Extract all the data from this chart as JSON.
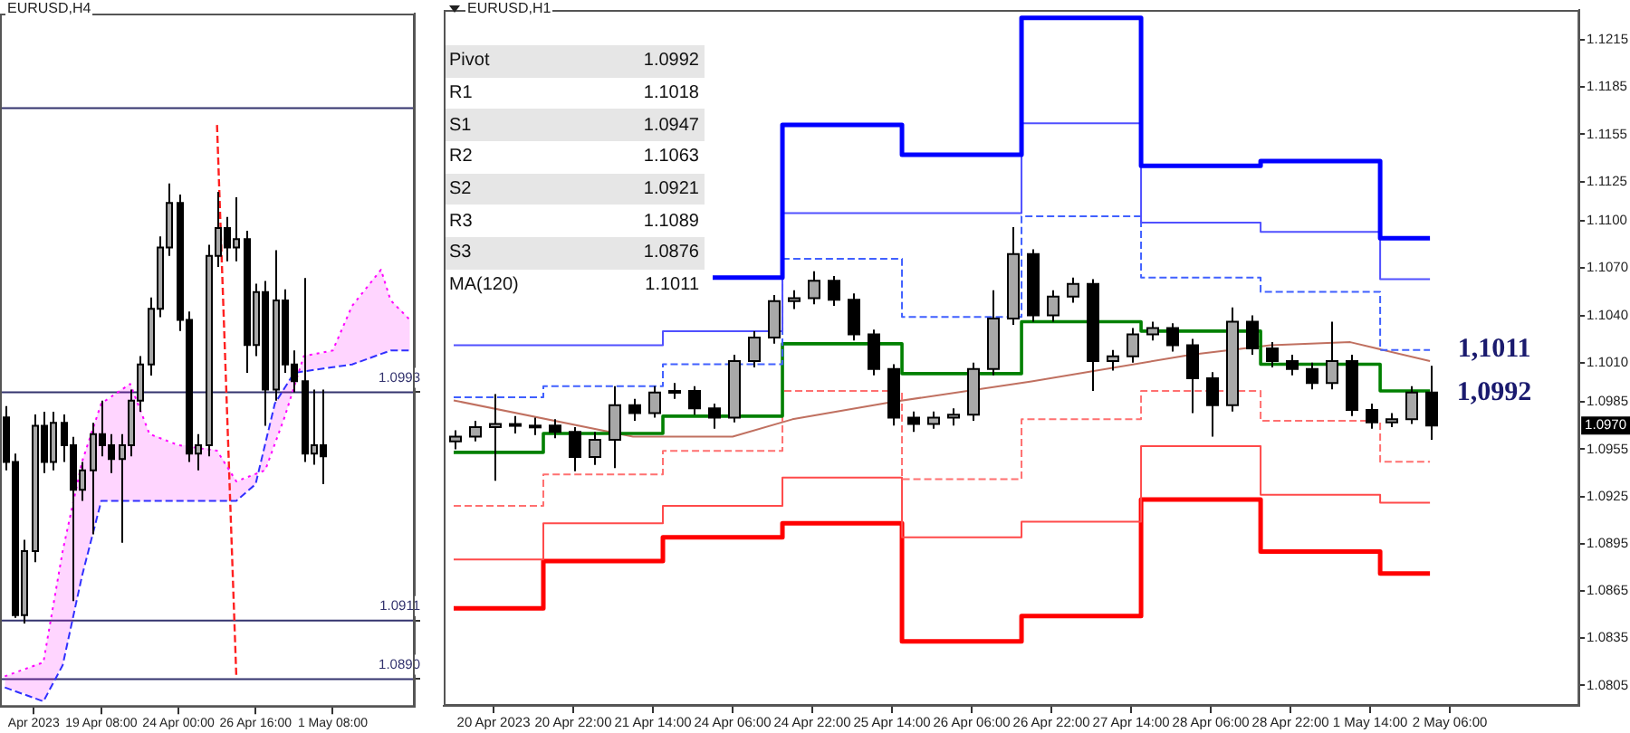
{
  "chart_data": [
    {
      "type": "candlestick",
      "title": "EURUSD,H4",
      "categories": [
        null,
        null,
        null,
        "Apr 2023",
        null,
        null,
        null,
        null,
        null,
        null,
        "19 Apr 08:00",
        null,
        null,
        null,
        null,
        null,
        null,
        null,
        "24 Apr 00:00",
        null,
        null,
        null,
        null,
        null,
        null,
        null,
        "26 Apr 16:00",
        null,
        null,
        null,
        null,
        null,
        null,
        null,
        "1 May 08:00",
        null,
        null,
        null,
        null,
        null,
        null,
        null,
        null
      ],
      "ohlc": [
        [
          1.0984,
          1.0988,
          1.0965,
          1.0968
        ],
        [
          1.0968,
          1.0971,
          1.0912,
          1.0913
        ],
        [
          1.0913,
          1.094,
          1.091,
          1.0936
        ],
        [
          1.0936,
          1.0985,
          1.0932,
          1.0981
        ],
        [
          1.0981,
          1.0986,
          1.0964,
          1.0968
        ],
        [
          1.0968,
          1.0986,
          1.0965,
          1.0982
        ],
        [
          1.0982,
          1.0985,
          1.0968,
          1.0974
        ],
        [
          1.0974,
          1.0977,
          1.0918,
          1.0958
        ],
        [
          1.0958,
          1.0968,
          1.0954,
          1.0965
        ],
        [
          1.0965,
          1.0982,
          1.0942,
          1.0978
        ],
        [
          1.0978,
          1.099,
          1.097,
          1.0974
        ],
        [
          1.0974,
          1.0978,
          1.0964,
          1.0969
        ],
        [
          1.0969,
          1.0978,
          1.0939,
          1.0974
        ],
        [
          1.0974,
          1.0994,
          1.097,
          1.099
        ],
        [
          1.099,
          1.1006,
          1.0986,
          1.1003
        ],
        [
          1.1003,
          1.1027,
          1.0999,
          1.1023
        ],
        [
          1.1023,
          1.1049,
          1.102,
          1.1045
        ],
        [
          1.1045,
          1.1068,
          1.1042,
          1.1061
        ],
        [
          1.1061,
          1.1064,
          1.1015,
          1.1019
        ],
        [
          1.1019,
          1.1022,
          1.0968,
          1.0971
        ],
        [
          1.0971,
          1.0978,
          1.0965,
          1.0974
        ],
        [
          1.0974,
          1.1046,
          1.097,
          1.1042
        ],
        [
          1.1042,
          1.1065,
          1.1038,
          1.1052
        ],
        [
          1.1052,
          1.1056,
          1.104,
          1.1045
        ],
        [
          1.1045,
          1.1063,
          1.104,
          1.1048
        ],
        [
          1.1048,
          1.1051,
          1.1,
          1.101
        ],
        [
          1.101,
          1.1032,
          1.1006,
          1.1029
        ],
        [
          1.1029,
          1.1033,
          1.0981,
          1.0994
        ],
        [
          1.0994,
          1.1044,
          1.099,
          1.1026
        ],
        [
          1.1026,
          1.103,
          1.1,
          1.1003
        ],
        [
          1.1003,
          1.1008,
          1.0993,
          1.0997
        ],
        [
          1.0997,
          1.1034,
          1.0968,
          1.0971
        ],
        [
          1.0971,
          1.0994,
          1.0967,
          1.0974
        ],
        [
          1.0974,
          1.0994,
          1.096,
          1.097
        ],
        null,
        null,
        null,
        null,
        null,
        null,
        null,
        null,
        null
      ],
      "series": [
        {
          "type": "line",
          "color": "#ff00ff",
          "line_style": "dotted",
          "values": [
            1.0891,
            null,
            null,
            null,
            1.0896,
            null,
            1.0936,
            null,
            1.0968,
            null,
            1.0989,
            null,
            null,
            1.0996,
            null,
            1.0978,
            null,
            null,
            1.0974,
            null,
            null,
            null,
            1.0972,
            null,
            1.0961,
            null,
            null,
            1.0965,
            null,
            1.0984,
            null,
            1.1006,
            null,
            null,
            1.1008,
            null,
            1.1024,
            null,
            null,
            1.1037,
            1.1026,
            null,
            1.1019
          ],
          "upper": [
            1.0891,
            1.0892,
            1.0893,
            1.0895,
            1.0896,
            1.0916,
            1.0936,
            1.0952,
            1.0968,
            1.0979,
            1.0989,
            1.0991,
            1.0994,
            1.0996,
            1.0987,
            1.0978,
            1.0977,
            1.0975,
            1.0974,
            1.0974,
            1.0973,
            1.0973,
            1.0972,
            1.0967,
            1.0961,
            1.0962,
            1.0964,
            1.0965,
            1.0975,
            1.0984,
            1.0995,
            1.1006,
            1.1007,
            1.1007,
            1.1008,
            1.1016,
            1.1024,
            1.1028,
            1.1033,
            1.1037,
            1.1026,
            1.1023,
            1.1019
          ],
          "lower": [
            1.0887,
            1.0886,
            1.0885,
            1.0883,
            1.0882,
            1.0889,
            1.0895,
            1.0911,
            1.0927,
            1.0941,
            1.0954,
            1.0954,
            1.0954,
            1.0954,
            1.0954,
            1.0954,
            1.0954,
            1.0954,
            1.0954,
            1.0954,
            1.0954,
            1.0954,
            1.0954,
            1.0954,
            1.0954,
            1.0957,
            1.096,
            1.0975,
            1.0989,
            1.0995,
            1.1,
            1.1001,
            1.1001,
            1.1002,
            1.1002,
            1.1003,
            1.1003,
            1.1004,
            1.1005,
            1.1007,
            1.1008,
            1.1008,
            1.1008
          ]
        },
        {
          "type": "line",
          "color": "#3030ff",
          "line_style": "dashed",
          "values": [
            1.0887,
            null,
            null,
            null,
            1.0882,
            null,
            1.0895,
            null,
            1.0927,
            null,
            1.0954,
            null,
            null,
            null,
            null,
            null,
            null,
            null,
            null,
            null,
            null,
            null,
            null,
            null,
            1.0954,
            null,
            1.096,
            null,
            1.0989,
            null,
            1.1,
            null,
            null,
            null,
            1.1002,
            null,
            1.1003,
            null,
            null,
            null,
            1.1008,
            null,
            1.1008
          ]
        },
        {
          "type": "line",
          "color": "#ff2020",
          "line_style": "dashed",
          "values": [
            null,
            null,
            null,
            null,
            null,
            null,
            null,
            null,
            null,
            null,
            null,
            null,
            null,
            null,
            null,
            null,
            null,
            null,
            null,
            null,
            null,
            null,
            1.1089,
            null,
            1.0891,
            null,
            null,
            null,
            null,
            null,
            null,
            null,
            null,
            null,
            null,
            null,
            null,
            null,
            null,
            null,
            null,
            null,
            null
          ]
        }
      ],
      "ylim": [
        1.088,
        1.1129
      ],
      "yticks": [
        1.0993,
        1.0911,
        {
          "value": 1.089,
          "label": "1.0890"
        }
      ],
      "ref_lines": [
        {
          "axis": "y",
          "value": 1.1095,
          "color": "#33336e"
        },
        {
          "axis": "y",
          "value": 1.0993,
          "color": "#33336e"
        },
        {
          "axis": "y",
          "value": 1.0911,
          "color": "#33336e"
        },
        {
          "axis": "y",
          "value": 1.089,
          "color": "#33336e"
        }
      ]
    },
    {
      "type": "candlestick",
      "title": "EURUSD,H1",
      "categories": [
        null,
        null,
        "20 Apr 2023",
        null,
        null,
        null,
        "20 Apr 22:00",
        null,
        null,
        null,
        "21 Apr 14:00",
        null,
        null,
        null,
        "24 Apr 06:00",
        null,
        null,
        null,
        "24 Apr 22:00",
        null,
        null,
        null,
        "25 Apr 14:00",
        null,
        null,
        null,
        "26 Apr 06:00",
        null,
        null,
        null,
        "26 Apr 22:00",
        null,
        null,
        null,
        "27 Apr 14:00",
        null,
        null,
        null,
        "28 Apr 06:00",
        null,
        null,
        null,
        "28 Apr 22:00",
        null,
        null,
        null,
        "1 May 14:00",
        null,
        null,
        null,
        "2 May 06:00",
        null,
        null,
        null,
        null,
        null,
        null
      ],
      "ohlc": [
        [
          1.096,
          1.0967,
          1.0955,
          1.0963
        ],
        [
          1.0963,
          1.0973,
          1.096,
          1.0969
        ],
        [
          1.0969,
          1.099,
          1.0935,
          1.0971
        ],
        [
          1.0971,
          1.0976,
          1.0965,
          1.097
        ],
        [
          1.097,
          1.0975,
          1.0964,
          1.097
        ],
        [
          1.097,
          1.0974,
          1.0962,
          1.0966
        ],
        [
          1.0966,
          1.0969,
          1.0941,
          1.095
        ],
        [
          1.095,
          1.0966,
          1.0945,
          1.0961
        ],
        [
          1.0961,
          1.0995,
          1.0943,
          1.0983
        ],
        [
          1.0983,
          1.0987,
          1.0973,
          1.0978
        ],
        [
          1.0978,
          1.0995,
          1.0975,
          1.0991
        ],
        [
          1.0991,
          1.0997,
          1.0987,
          1.0992
        ],
        [
          1.0992,
          1.0995,
          1.0977,
          1.0981
        ],
        [
          1.0981,
          1.0984,
          1.0968,
          1.0975
        ],
        [
          1.0975,
          1.1015,
          1.0972,
          1.1011
        ],
        [
          1.1011,
          1.103,
          1.1007,
          1.1026
        ],
        [
          1.1026,
          1.1053,
          1.1022,
          1.1049
        ],
        [
          1.1049,
          1.1056,
          1.1044,
          1.1051
        ],
        [
          1.1051,
          1.1068,
          1.1047,
          1.1062
        ],
        [
          1.1062,
          1.1065,
          1.1046,
          1.105
        ],
        [
          1.105,
          1.1054,
          1.1024,
          1.1028
        ],
        [
          1.1028,
          1.1031,
          1.1002,
          1.1006
        ],
        [
          1.1006,
          1.1009,
          1.097,
          1.0975
        ],
        [
          1.0975,
          1.0979,
          1.0966,
          1.0971
        ],
        [
          1.0971,
          1.0979,
          1.0968,
          1.0975
        ],
        [
          1.0975,
          1.0981,
          1.097,
          1.0977
        ],
        [
          1.0977,
          1.101,
          1.0973,
          1.1006
        ],
        [
          1.1006,
          1.1056,
          1.1002,
          1.1038
        ],
        [
          1.1038,
          1.1096,
          1.1034,
          1.1079
        ],
        [
          1.1079,
          1.1082,
          1.1036,
          1.104
        ],
        [
          1.104,
          1.1056,
          1.1036,
          1.1052
        ],
        [
          1.1052,
          1.1064,
          1.1048,
          1.106
        ],
        [
          1.106,
          1.1063,
          1.0992,
          1.1011
        ],
        [
          1.1011,
          1.1018,
          1.1005,
          1.1014
        ],
        [
          1.1014,
          1.1032,
          1.101,
          1.1028
        ],
        [
          1.1028,
          1.1036,
          1.1024,
          1.1032
        ],
        [
          1.1032,
          1.1035,
          1.1017,
          1.1021
        ],
        [
          1.1021,
          1.1025,
          1.0978,
          1.1
        ],
        [
          1.1,
          1.1004,
          1.0963,
          1.0983
        ],
        [
          1.0983,
          1.1045,
          1.0979,
          1.1036
        ],
        [
          1.1036,
          1.104,
          1.1015,
          1.1019
        ],
        [
          1.1019,
          1.1023,
          1.1007,
          1.1011
        ],
        [
          1.1011,
          1.1015,
          1.1002,
          1.1006
        ],
        [
          1.1006,
          1.101,
          1.0993,
          1.0997
        ],
        [
          1.0997,
          1.1036,
          1.0993,
          1.1011
        ],
        [
          1.1011,
          1.1015,
          1.0976,
          1.098
        ],
        [
          1.098,
          1.0984,
          1.0968,
          1.0972
        ],
        [
          1.0972,
          1.0978,
          1.0969,
          1.0974
        ],
        [
          1.0974,
          1.0995,
          1.0971,
          1.0991
        ],
        [
          1.0991,
          1.1008,
          1.0961,
          1.097
        ],
        null,
        null,
        null,
        null,
        null,
        null,
        null
      ],
      "series": [
        {
          "type": "step",
          "color": "#0000ff",
          "values": [
            null,
            null,
            null,
            null,
            null,
            null,
            null,
            null,
            null,
            null,
            null,
            null,
            null,
            1.1064,
            1.1064,
            1.1064,
            1.1064,
            1.1161,
            1.1161,
            1.1161,
            1.1161,
            1.1161,
            1.1161,
            1.1142,
            1.1142,
            1.1142,
            1.1142,
            1.1142,
            1.1142,
            1.1229,
            1.1229,
            1.1229,
            1.1229,
            1.1229,
            1.1229,
            1.1135,
            1.1135,
            1.1135,
            1.1135,
            1.1135,
            1.1135,
            1.1138,
            1.1138,
            1.1138,
            1.1138,
            1.1138,
            1.1138,
            1.1089,
            1.1089,
            1.1089,
            null,
            null,
            null,
            null,
            null,
            null,
            null
          ]
        },
        {
          "type": "step",
          "color": "#5050ff",
          "values": [
            1.1021,
            1.1021,
            1.1021,
            1.1021,
            1.1021,
            1.1021,
            1.1021,
            1.1021,
            1.1021,
            1.1021,
            1.1021,
            1.103,
            1.103,
            1.103,
            1.103,
            1.103,
            1.103,
            1.1105,
            1.1105,
            1.1105,
            1.1105,
            1.1105,
            1.1105,
            1.1105,
            1.1105,
            1.1105,
            1.1105,
            1.1105,
            1.1105,
            1.1162,
            1.1162,
            1.1162,
            1.1162,
            1.1162,
            1.1162,
            1.1099,
            1.1099,
            1.1099,
            1.1099,
            1.1099,
            1.1099,
            1.1093,
            1.1093,
            1.1093,
            1.1093,
            1.1093,
            1.1093,
            1.1063,
            1.1063,
            1.1063,
            null,
            null,
            null,
            null,
            null,
            null,
            null
          ]
        },
        {
          "type": "step",
          "color": "#4060ff",
          "line_style": "dashed",
          "values": [
            1.0988,
            1.0988,
            1.0988,
            1.0988,
            1.0988,
            1.0995,
            1.0995,
            1.0995,
            1.0995,
            1.0995,
            1.0995,
            1.1009,
            1.1009,
            1.1009,
            null,
            1.1009,
            1.1009,
            1.1076,
            1.1076,
            1.1076,
            1.1076,
            1.1076,
            1.1076,
            1.1039,
            1.1039,
            1.1039,
            1.1039,
            1.1039,
            1.1039,
            1.1103,
            1.1103,
            1.1103,
            1.1103,
            1.1103,
            1.1103,
            1.1064,
            1.1064,
            1.1064,
            1.1064,
            1.1064,
            1.1064,
            1.1055,
            1.1055,
            1.1055,
            1.1055,
            1.1055,
            1.1055,
            1.1018,
            1.1018,
            1.1018,
            null,
            null,
            null,
            null,
            null,
            null,
            null
          ]
        },
        {
          "type": "step",
          "color": "#008000",
          "values": [
            1.0953,
            1.0953,
            1.0953,
            1.0953,
            1.0953,
            1.0965,
            1.0965,
            1.0965,
            1.0965,
            1.0965,
            1.0965,
            1.0976,
            1.0976,
            1.0976,
            1.0976,
            1.0976,
            1.0976,
            1.1022,
            1.1022,
            1.1022,
            1.1022,
            1.1022,
            1.1022,
            1.1003,
            1.1003,
            1.1003,
            1.1003,
            1.1003,
            1.1003,
            1.1036,
            1.1036,
            1.1036,
            1.1036,
            1.1036,
            1.1036,
            1.103,
            1.103,
            1.103,
            1.103,
            1.103,
            1.103,
            1.1009,
            1.1009,
            1.1009,
            1.1009,
            1.1009,
            1.1009,
            1.0992,
            1.0992,
            1.0992,
            null,
            null,
            null,
            null,
            null,
            null,
            null
          ]
        },
        {
          "type": "step",
          "color": "#ff7070",
          "line_style": "dashed",
          "values": [
            1.0919,
            1.0919,
            1.0919,
            1.0919,
            1.0919,
            1.0939,
            1.0939,
            1.0939,
            1.0939,
            1.0939,
            1.0939,
            1.0954,
            1.0954,
            1.0954,
            1.0954,
            1.0954,
            1.0954,
            1.0992,
            1.0992,
            1.0992,
            1.0992,
            1.0992,
            1.0992,
            1.0936,
            1.0936,
            1.0936,
            1.0936,
            1.0936,
            1.0936,
            1.0974,
            1.0974,
            1.0974,
            1.0974,
            1.0974,
            1.0974,
            1.0992,
            1.0992,
            1.0992,
            1.0992,
            null,
            1.0992,
            1.0973,
            1.0973,
            1.0973,
            1.0973,
            1.0973,
            1.0973,
            1.0947,
            1.0947,
            1.0947,
            null,
            null,
            null,
            null,
            null,
            null,
            null
          ]
        },
        {
          "type": "step",
          "color": "#ff4a4a",
          "values": [
            1.0885,
            1.0885,
            1.0885,
            1.0885,
            1.0885,
            1.0908,
            1.0908,
            1.0908,
            1.0908,
            1.0908,
            1.0908,
            1.0919,
            1.0919,
            1.0919,
            1.0919,
            1.0919,
            1.0919,
            1.0937,
            1.0937,
            1.0937,
            1.0937,
            1.0937,
            1.0937,
            1.0899,
            1.0899,
            1.0899,
            1.0899,
            1.0899,
            1.0899,
            1.0909,
            1.0909,
            1.0909,
            1.0909,
            1.0909,
            1.0909,
            1.0957,
            1.0957,
            1.0957,
            1.0957,
            1.0957,
            1.0957,
            1.0926,
            1.0926,
            1.0926,
            1.0926,
            1.0926,
            1.0926,
            1.0921,
            1.0921,
            1.0921,
            null,
            null,
            null,
            null,
            null,
            null,
            null
          ]
        },
        {
          "type": "step",
          "color": "#ff0000",
          "values": [
            1.0854,
            1.0854,
            1.0854,
            1.0854,
            1.0854,
            1.0884,
            1.0884,
            1.0884,
            1.0884,
            1.0884,
            1.0884,
            1.0899,
            1.0899,
            1.0899,
            1.0899,
            1.0899,
            1.0899,
            1.0908,
            1.0908,
            1.0908,
            1.0908,
            1.0908,
            1.0908,
            1.0833,
            1.0833,
            1.0833,
            1.0833,
            1.0833,
            1.0833,
            1.0849,
            1.0849,
            1.0849,
            1.0849,
            1.0849,
            1.0849,
            1.0923,
            1.0923,
            1.0923,
            1.0923,
            1.0923,
            1.0923,
            1.089,
            1.089,
            1.089,
            1.089,
            1.089,
            1.089,
            1.0876,
            1.0876,
            1.0876,
            null,
            null,
            null,
            null,
            null,
            null,
            null
          ]
        },
        {
          "type": "line",
          "color": "#c07060",
          "values": [
            1.0986,
            null,
            null,
            null,
            null,
            null,
            null,
            null,
            null,
            1.0963,
            null,
            null,
            null,
            null,
            1.0963,
            null,
            null,
            1.0974,
            null,
            null,
            null,
            null,
            1.0985,
            null,
            null,
            null,
            null,
            null,
            null,
            1.0998,
            null,
            null,
            null,
            null,
            null,
            null,
            null,
            1.1015,
            null,
            null,
            null,
            1.1021,
            null,
            null,
            null,
            1.1023,
            null,
            null,
            null,
            1.1011,
            null,
            null,
            null,
            null,
            null,
            null,
            null
          ]
        }
      ],
      "ylim": [
        1.0792,
        1.1234
      ],
      "yticks": [
        1.1215,
        1.1185,
        1.1155,
        1.1125,
        {
          "value": 1.11,
          "label": "1.1100"
        },
        {
          "value": 1.107,
          "label": "1.1070"
        },
        {
          "value": 1.104,
          "label": "1.1040"
        },
        {
          "value": 1.101,
          "label": "1.1010"
        },
        1.0985,
        1.0955,
        1.0925,
        1.0895,
        1.0865,
        1.0835,
        1.0805
      ],
      "annotations": [
        "1,1011",
        "1,0992",
        "1.0970",
        "Pivot",
        "1.0992",
        "R1",
        "1.1018",
        "S1",
        "1.0947",
        "R2",
        "1.1063",
        "S2",
        "1.0921",
        "R3",
        "1.1089",
        "S3",
        "1.0876",
        "MA(120)",
        "1.1011"
      ]
    }
  ]
}
